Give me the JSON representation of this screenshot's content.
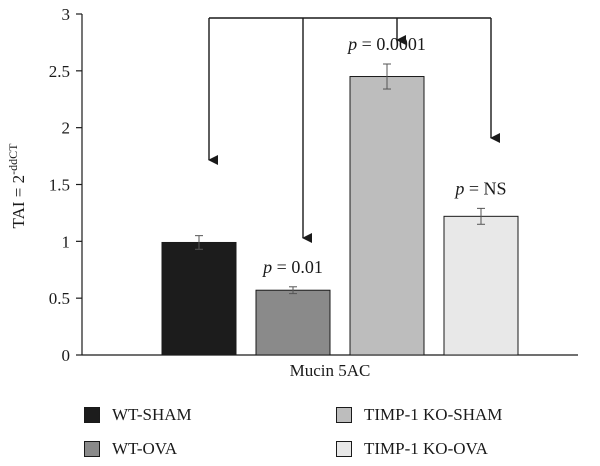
{
  "chart_data": {
    "type": "bar",
    "title": "",
    "ylabel": "TAI = 2",
    "ylabel_superscript": "-ddCT",
    "xlabel": "Mucin 5AC",
    "ylim": [
      0,
      3
    ],
    "yticks": [
      "0",
      "0.5",
      "1",
      "1.5",
      "2",
      "2.5",
      "3"
    ],
    "grid": false,
    "legend_placement": "bottom",
    "series": [
      {
        "name": "WT-SHAM",
        "value": 0.99,
        "error": 0.06,
        "color": "#1c1c1c",
        "annotation": ""
      },
      {
        "name": "WT-OVA",
        "value": 0.57,
        "error": 0.03,
        "color": "#8a8a8a",
        "annotation": "p = 0.01"
      },
      {
        "name": "TIMP-1 KO-SHAM",
        "value": 2.45,
        "error": 0.11,
        "color": "#bdbdbd",
        "annotation": "p = 0.0001"
      },
      {
        "name": "TIMP-1 KO-OVA",
        "value": 1.22,
        "error": 0.07,
        "color": "#e8e8e8",
        "annotation": "p = NS"
      }
    ],
    "comparisons": [
      {
        "from": "TIMP-1 KO-SHAM",
        "to": "WT-SHAM"
      },
      {
        "from": "TIMP-1 KO-SHAM",
        "to": "WT-OVA"
      },
      {
        "from": "TIMP-1 KO-SHAM",
        "to": "TIMP-1 KO-SHAM"
      },
      {
        "from": "TIMP-1 KO-SHAM",
        "to": "TIMP-1 KO-OVA"
      }
    ]
  }
}
